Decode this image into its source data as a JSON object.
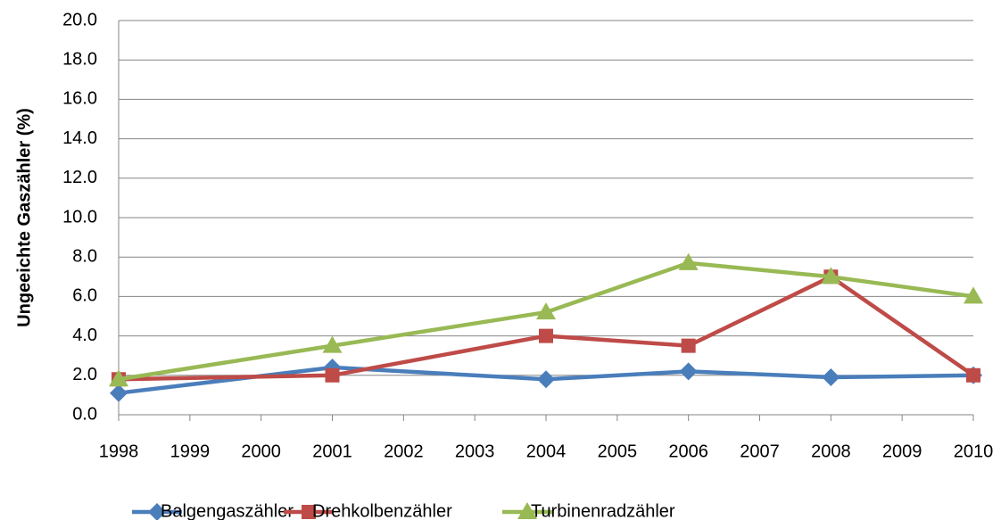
{
  "chart_data": {
    "type": "line",
    "ylabel": "Ungeeichte Gaszähler (%)",
    "x": [
      1998,
      2001,
      2004,
      2006,
      2008,
      2010
    ],
    "xlim": [
      1998,
      2010
    ],
    "xticks": [
      1998,
      1999,
      2000,
      2001,
      2002,
      2003,
      2004,
      2005,
      2006,
      2007,
      2008,
      2009,
      2010
    ],
    "ylim": [
      0,
      20
    ],
    "yticks": [
      {
        "value": 0,
        "label": "0.0"
      },
      {
        "value": 2,
        "label": "2.0"
      },
      {
        "value": 4,
        "label": "4.0"
      },
      {
        "value": 6,
        "label": "6.0"
      },
      {
        "value": 8,
        "label": "8.0"
      },
      {
        "value": 10,
        "label": "10.0"
      },
      {
        "value": 12,
        "label": "12.0"
      },
      {
        "value": 14,
        "label": "14.0"
      },
      {
        "value": 16,
        "label": "16.0"
      },
      {
        "value": 18,
        "label": "18.0"
      },
      {
        "value": 20,
        "label": "20.0"
      }
    ],
    "grid": true,
    "legend": "bottom",
    "series": [
      {
        "name": "Balgengaszähler",
        "color": "#4a7ebb",
        "marker": "diamond",
        "values": [
          1.1,
          2.4,
          1.8,
          2.2,
          1.9,
          2.0
        ]
      },
      {
        "name": "Drehkolbenzähler",
        "color": "#be4b48",
        "marker": "square",
        "values": [
          1.8,
          2.0,
          4.0,
          3.5,
          7.0,
          2.0
        ]
      },
      {
        "name": "Turbinenradzähler",
        "color": "#98b954",
        "marker": "triangle",
        "values": [
          1.8,
          3.5,
          5.2,
          7.7,
          7.0,
          6.0
        ]
      }
    ]
  }
}
